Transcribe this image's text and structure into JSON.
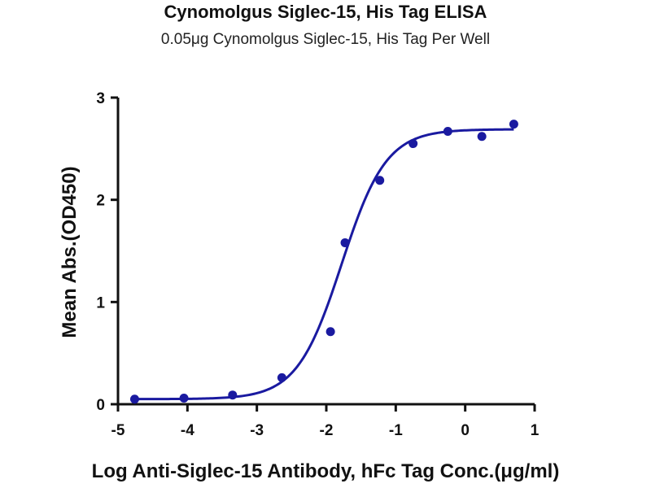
{
  "chart_data": {
    "type": "scatter",
    "title": "Cynomolgus Siglec-15, His Tag ELISA",
    "subtitle": "0.05μg Cynomolgus Siglec-15, His Tag Per Well",
    "xlabel": "Log Anti-Siglec-15 Antibody, hFc Tag Conc.(μg/ml)",
    "ylabel": "Mean Abs.(OD450)",
    "xlim": [
      -5,
      1
    ],
    "ylim": [
      0,
      3
    ],
    "x_ticks": [
      -5,
      -4,
      -3,
      -2,
      -1,
      0,
      1
    ],
    "y_ticks": [
      0,
      1,
      2,
      3
    ],
    "grid": false,
    "series": [
      {
        "points": [
          {
            "x": -4.76,
            "y": 0.05
          },
          {
            "x": -4.05,
            "y": 0.06
          },
          {
            "x": -3.35,
            "y": 0.09
          },
          {
            "x": -2.64,
            "y": 0.26
          },
          {
            "x": -1.94,
            "y": 0.71
          },
          {
            "x": -1.73,
            "y": 1.58
          },
          {
            "x": -1.23,
            "y": 2.19
          },
          {
            "x": -0.75,
            "y": 2.55
          },
          {
            "x": -0.25,
            "y": 2.67
          },
          {
            "x": 0.24,
            "y": 2.62
          },
          {
            "x": 0.7,
            "y": 2.74
          }
        ],
        "fit": {
          "bottom": 0.05,
          "top": 2.69,
          "log_ec50": -1.78,
          "hill_slope": 1.35,
          "x_range": [
            -4.76,
            0.7
          ]
        },
        "color": "#1a1aa0"
      }
    ]
  }
}
